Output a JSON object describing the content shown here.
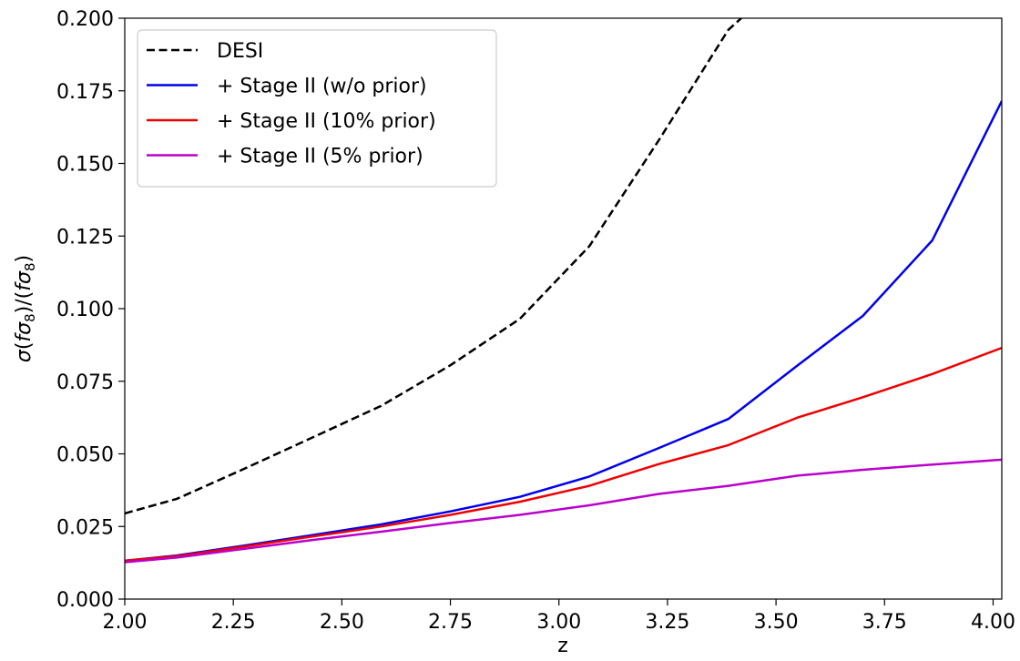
{
  "chart_data": {
    "type": "line",
    "xlabel": "z",
    "ylabel_parts": {
      "sigma": "σ",
      "open": "(",
      "f": "f",
      "sigma8_a": "σ",
      "sub_a": "8",
      "mid": ")/(",
      "f2": "f",
      "sigma8_b": "σ",
      "sub_b": "8",
      "close": ")"
    },
    "xlim": [
      2.0,
      4.02
    ],
    "ylim": [
      0.0,
      0.2
    ],
    "xticks": [
      "2.00",
      "2.25",
      "2.50",
      "2.75",
      "3.00",
      "3.25",
      "3.50",
      "3.75",
      "4.00"
    ],
    "xtick_values": [
      2.0,
      2.25,
      2.5,
      2.75,
      3.0,
      3.25,
      3.5,
      3.75,
      4.0
    ],
    "yticks": [
      "0.000",
      "0.025",
      "0.050",
      "0.075",
      "0.100",
      "0.125",
      "0.150",
      "0.175",
      "0.200"
    ],
    "ytick_values": [
      0.0,
      0.025,
      0.05,
      0.075,
      0.1,
      0.125,
      0.15,
      0.175,
      0.2
    ],
    "legend_position": "top-left",
    "series": [
      {
        "name": "DESI",
        "color": "#000000",
        "dashed": true,
        "x": [
          2.0,
          2.12,
          2.27,
          2.43,
          2.59,
          2.75,
          2.91,
          3.07,
          3.23,
          3.39,
          3.42
        ],
        "y": [
          0.0295,
          0.0345,
          0.0445,
          0.0555,
          0.0665,
          0.0805,
          0.0965,
          0.1215,
          0.158,
          0.196,
          0.2
        ]
      },
      {
        "name": "+ Stage II (w/o prior)",
        "color": "#0000ee",
        "dashed": false,
        "x": [
          2.0,
          2.12,
          2.27,
          2.43,
          2.59,
          2.75,
          2.91,
          3.07,
          3.23,
          3.39,
          3.55,
          3.7,
          3.86,
          4.02
        ],
        "y": [
          0.0132,
          0.015,
          0.0183,
          0.022,
          0.0257,
          0.0302,
          0.0352,
          0.0422,
          0.052,
          0.062,
          0.0805,
          0.0975,
          0.1235,
          0.1715
        ]
      },
      {
        "name": "+ Stage II (10% prior)",
        "color": "#ee0000",
        "dashed": false,
        "x": [
          2.0,
          2.12,
          2.27,
          2.43,
          2.59,
          2.75,
          2.91,
          3.07,
          3.23,
          3.39,
          3.55,
          3.7,
          3.86,
          4.02
        ],
        "y": [
          0.0132,
          0.0148,
          0.018,
          0.0215,
          0.025,
          0.029,
          0.0335,
          0.039,
          0.0465,
          0.053,
          0.0625,
          0.0695,
          0.0775,
          0.0865
        ]
      },
      {
        "name": "+ Stage II (5% prior)",
        "color": "#bb00cc",
        "dashed": false,
        "x": [
          2.0,
          2.12,
          2.27,
          2.43,
          2.59,
          2.75,
          2.91,
          3.07,
          3.23,
          3.39,
          3.55,
          3.7,
          3.86,
          4.02
        ],
        "y": [
          0.0127,
          0.0143,
          0.0172,
          0.0203,
          0.0232,
          0.0262,
          0.029,
          0.0323,
          0.0362,
          0.039,
          0.0425,
          0.0445,
          0.0463,
          0.048
        ]
      }
    ]
  }
}
